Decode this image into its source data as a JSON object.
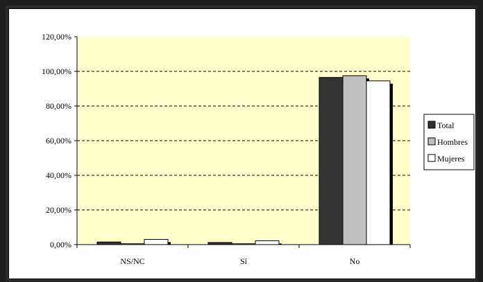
{
  "chart_data": {
    "type": "bar",
    "title": "",
    "xlabel": "",
    "ylabel": "",
    "categories": [
      "NS/NC",
      "Sí",
      "No"
    ],
    "series": [
      {
        "name": "Total",
        "color": "#333333",
        "values": [
          1.5,
          1.2,
          96.5
        ]
      },
      {
        "name": "Hombres",
        "color": "#c0c0c0",
        "values": [
          0.5,
          0.5,
          97.5
        ]
      },
      {
        "name": "Mujeres",
        "color": "#ffffff",
        "values": [
          3.0,
          2.2,
          94.5
        ]
      }
    ],
    "ylim": [
      0,
      120
    ],
    "yticks": [
      0,
      20,
      40,
      60,
      80,
      100,
      120
    ],
    "ytick_labels": [
      "0,00%",
      "20,00%",
      "40,00%",
      "60,00%",
      "80,00%",
      "100,00%",
      "120,00%"
    ],
    "grid": "horizontal dashed",
    "legend_position": "right",
    "plot_background": "#ffffcc"
  }
}
